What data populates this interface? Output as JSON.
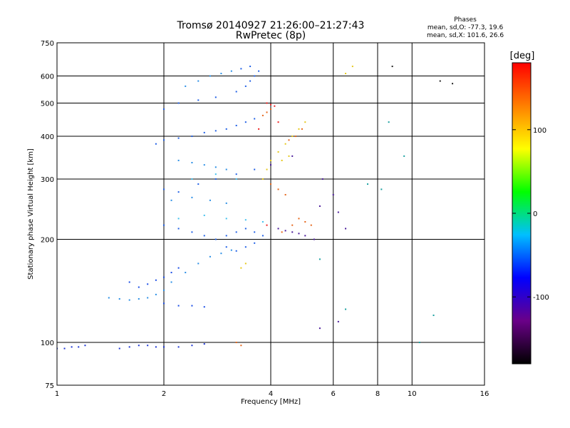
{
  "chart_data": {
    "type": "scatter",
    "title": "Tromsø 20140927 21:26:00–21:27:43",
    "subtitle": "RwPretec (8p)",
    "xlabel": "Frequency [MHz]",
    "ylabel": "Stationary phase Virtual Height [km]",
    "xscale": "log",
    "yscale": "log",
    "xlim": [
      1,
      16
    ],
    "ylim": [
      75,
      750
    ],
    "x_ticks": [
      1,
      2,
      4,
      6,
      8,
      10,
      16
    ],
    "y_ticks": [
      75,
      100,
      200,
      300,
      400,
      500,
      600,
      750
    ],
    "x_tick_labels": [
      "1",
      "2",
      "4",
      "6",
      "8",
      "10",
      "16"
    ],
    "y_tick_labels": [
      "75",
      "100",
      "200",
      "300",
      "400",
      "500",
      "600",
      "750"
    ],
    "x_grid": [
      2,
      4,
      6,
      8,
      10
    ],
    "y_grid": [
      100,
      200,
      300,
      400,
      500,
      600
    ],
    "grid": true,
    "stats": {
      "heading": "Phases",
      "line_o": "mean, sd,O: -77.3, 19.6",
      "line_x": "mean, sd,X: 101.6, 26.6"
    },
    "colorbar": {
      "label": "[deg]",
      "range": [
        -180,
        180
      ],
      "ticks": [
        100,
        0,
        -100
      ],
      "tick_labels": [
        "100",
        "0",
        "-100"
      ],
      "stops": [
        "#000000",
        "#6a0088",
        "#0000ff",
        "#00bfff",
        "#00ff00",
        "#ffff00",
        "#ff7f00",
        "#ff0000"
      ]
    },
    "series": [
      {
        "color": "#1a33d6",
        "points": [
          [
            1.0,
            96
          ],
          [
            1.05,
            96
          ],
          [
            1.1,
            97
          ],
          [
            1.15,
            97
          ],
          [
            1.2,
            98
          ],
          [
            1.5,
            96
          ],
          [
            1.6,
            97
          ],
          [
            1.7,
            98
          ],
          [
            1.8,
            98
          ],
          [
            1.9,
            97
          ],
          [
            2.0,
            97
          ],
          [
            2.2,
            97
          ],
          [
            2.4,
            98
          ],
          [
            2.6,
            99
          ]
        ]
      },
      {
        "color": "#1a4de6",
        "points": [
          [
            1.6,
            150
          ],
          [
            1.7,
            145
          ],
          [
            1.8,
            148
          ],
          [
            1.9,
            152
          ],
          [
            2.0,
            155
          ],
          [
            2.1,
            160
          ],
          [
            2.2,
            165
          ],
          [
            2.0,
            130
          ],
          [
            2.2,
            128
          ],
          [
            2.4,
            128
          ],
          [
            2.6,
            127
          ]
        ]
      },
      {
        "color": "#2060e6",
        "points": [
          [
            1.9,
            380
          ],
          [
            2.0,
            390
          ],
          [
            2.2,
            395
          ],
          [
            2.4,
            400
          ],
          [
            2.6,
            410
          ],
          [
            2.8,
            415
          ],
          [
            3.0,
            420
          ],
          [
            3.2,
            430
          ],
          [
            3.4,
            440
          ],
          [
            3.6,
            450
          ],
          [
            2.0,
            220
          ],
          [
            2.2,
            215
          ],
          [
            2.4,
            210
          ],
          [
            2.6,
            205
          ],
          [
            2.8,
            200
          ],
          [
            3.0,
            205
          ],
          [
            3.2,
            210
          ],
          [
            3.4,
            215
          ],
          [
            3.6,
            210
          ],
          [
            3.8,
            205
          ],
          [
            3.0,
            190
          ],
          [
            3.2,
            185
          ],
          [
            3.4,
            190
          ],
          [
            3.6,
            195
          ],
          [
            2.0,
            280
          ],
          [
            2.2,
            275
          ],
          [
            2.5,
            290
          ],
          [
            2.8,
            300
          ],
          [
            3.2,
            310
          ],
          [
            3.6,
            320
          ],
          [
            2.0,
            480
          ],
          [
            2.2,
            500
          ],
          [
            2.5,
            510
          ],
          [
            2.8,
            520
          ],
          [
            3.2,
            540
          ],
          [
            3.4,
            560
          ],
          [
            3.5,
            580
          ],
          [
            3.6,
            600
          ],
          [
            3.7,
            620
          ],
          [
            3.5,
            640
          ],
          [
            3.3,
            630
          ]
        ]
      },
      {
        "color": "#2a8fe6",
        "points": [
          [
            1.4,
            135
          ],
          [
            1.5,
            134
          ],
          [
            1.6,
            133
          ],
          [
            1.7,
            134
          ],
          [
            1.8,
            135
          ],
          [
            1.9,
            138
          ],
          [
            2.0,
            142
          ],
          [
            2.1,
            150
          ],
          [
            2.3,
            160
          ],
          [
            2.5,
            170
          ],
          [
            2.7,
            178
          ],
          [
            2.9,
            182
          ],
          [
            3.1,
            186
          ],
          [
            2.2,
            340
          ],
          [
            2.4,
            335
          ],
          [
            2.6,
            330
          ],
          [
            2.8,
            325
          ],
          [
            3.0,
            320
          ],
          [
            2.1,
            260
          ],
          [
            2.4,
            265
          ],
          [
            2.7,
            260
          ],
          [
            3.0,
            255
          ],
          [
            2.3,
            560
          ],
          [
            2.5,
            580
          ],
          [
            2.7,
            600
          ],
          [
            2.9,
            610
          ],
          [
            3.1,
            620
          ]
        ]
      },
      {
        "color": "#40c0ee",
        "points": [
          [
            2.2,
            230
          ],
          [
            2.6,
            235
          ],
          [
            3.0,
            230
          ],
          [
            3.4,
            228
          ],
          [
            3.8,
            225
          ],
          [
            2.4,
            300
          ],
          [
            2.8,
            310
          ],
          [
            3.2,
            300
          ]
        ]
      },
      {
        "color": "#e6c81a",
        "points": [
          [
            3.8,
            300
          ],
          [
            3.9,
            320
          ],
          [
            4.0,
            340
          ],
          [
            4.2,
            360
          ],
          [
            4.4,
            380
          ],
          [
            4.6,
            400
          ],
          [
            4.8,
            420
          ],
          [
            5.0,
            440
          ],
          [
            3.4,
            170
          ],
          [
            3.3,
            165
          ],
          [
            4.3,
            340
          ],
          [
            4.5,
            350
          ],
          [
            6.5,
            610
          ],
          [
            6.8,
            640
          ]
        ]
      },
      {
        "color": "#e6661a",
        "points": [
          [
            3.8,
            460
          ],
          [
            3.9,
            470
          ],
          [
            4.0,
            480
          ],
          [
            4.5,
            390
          ],
          [
            4.7,
            400
          ],
          [
            4.9,
            420
          ],
          [
            4.0,
            290
          ],
          [
            4.2,
            280
          ],
          [
            4.4,
            270
          ],
          [
            4.8,
            230
          ],
          [
            5.0,
            225
          ],
          [
            5.2,
            220
          ],
          [
            3.2,
            100
          ],
          [
            3.3,
            98
          ],
          [
            4.6,
            220
          ],
          [
            4.3,
            210
          ]
        ]
      },
      {
        "color": "#ee2020",
        "points": [
          [
            3.9,
            500
          ],
          [
            4.0,
            495
          ],
          [
            4.1,
            490
          ],
          [
            3.7,
            420
          ],
          [
            4.2,
            440
          ],
          [
            3.9,
            220
          ]
        ]
      },
      {
        "color": "#4a1a9a",
        "points": [
          [
            4.2,
            215
          ],
          [
            4.4,
            212
          ],
          [
            4.6,
            210
          ],
          [
            4.8,
            208
          ],
          [
            5.0,
            205
          ],
          [
            5.3,
            200
          ],
          [
            5.5,
            250
          ],
          [
            5.6,
            300
          ],
          [
            6.0,
            270
          ],
          [
            6.2,
            240
          ],
          [
            6.5,
            215
          ],
          [
            4.0,
            330
          ],
          [
            4.6,
            350
          ],
          [
            5.5,
            110
          ],
          [
            6.2,
            115
          ]
        ]
      },
      {
        "color": "#1aa0a0",
        "points": [
          [
            7.5,
            290
          ],
          [
            8.2,
            280
          ],
          [
            9.5,
            350
          ],
          [
            10.5,
            100
          ],
          [
            11.5,
            120
          ],
          [
            8.6,
            440
          ],
          [
            6.5,
            125
          ],
          [
            5.5,
            175
          ]
        ]
      },
      {
        "color": "#222222",
        "points": [
          [
            13.0,
            570
          ],
          [
            12.0,
            580
          ],
          [
            8.8,
            640
          ]
        ]
      }
    ]
  }
}
